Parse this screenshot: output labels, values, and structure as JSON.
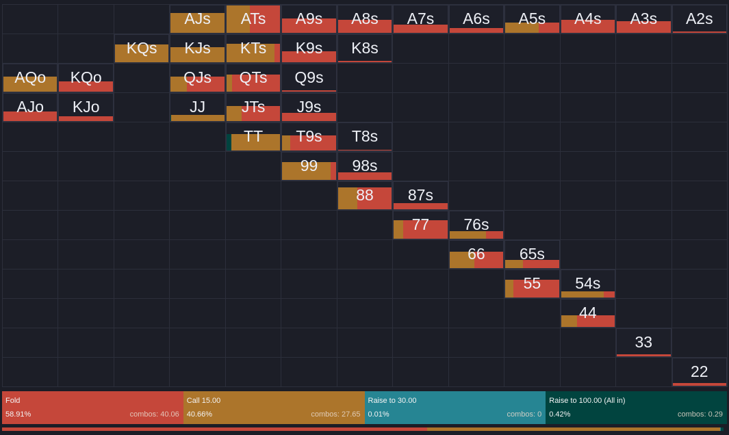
{
  "colors": {
    "fold": "#c5473a",
    "call": "#ac752b",
    "raise": "#268593",
    "allin": "#01443f"
  },
  "actions": [
    {
      "key": "fold",
      "name": "Fold",
      "pct": "58.91%",
      "combos": "combos: 40.06",
      "share": 58.91
    },
    {
      "key": "call",
      "name": "Call 15.00",
      "pct": "40.66%",
      "combos": "combos: 27.65",
      "share": 40.66
    },
    {
      "key": "raise",
      "name": "Raise to 30.00",
      "pct": "0.01%",
      "combos": "combos: 0",
      "share": 0.01
    },
    {
      "key": "allin",
      "name": "Raise to 100.00 (All in)",
      "pct": "0.42%",
      "combos": "combos: 0.29",
      "share": 0.42
    }
  ],
  "hands": [
    {
      "label": "AJs",
      "row": 0,
      "col": 3,
      "weight": 0.72,
      "call": 1,
      "fold": 0,
      "allin": 0
    },
    {
      "label": "ATs",
      "row": 0,
      "col": 4,
      "weight": 1.0,
      "call": 0.43,
      "fold": 0.57,
      "allin": 0
    },
    {
      "label": "A9s",
      "row": 0,
      "col": 5,
      "weight": 0.52,
      "call": 0,
      "fold": 1,
      "allin": 0
    },
    {
      "label": "A8s",
      "row": 0,
      "col": 6,
      "weight": 0.47,
      "call": 0,
      "fold": 1,
      "allin": 0
    },
    {
      "label": "A7s",
      "row": 0,
      "col": 7,
      "weight": 0.3,
      "call": 0,
      "fold": 1,
      "allin": 0
    },
    {
      "label": "A6s",
      "row": 0,
      "col": 8,
      "weight": 0.18,
      "call": 0,
      "fold": 1,
      "allin": 0
    },
    {
      "label": "A5s",
      "row": 0,
      "col": 9,
      "weight": 0.38,
      "call": 0.62,
      "fold": 0.38,
      "allin": 0
    },
    {
      "label": "A4s",
      "row": 0,
      "col": 10,
      "weight": 0.47,
      "call": 0,
      "fold": 1,
      "allin": 0
    },
    {
      "label": "A3s",
      "row": 0,
      "col": 11,
      "weight": 0.42,
      "call": 0,
      "fold": 1,
      "allin": 0
    },
    {
      "label": "A2s",
      "row": 0,
      "col": 12,
      "weight": 0.05,
      "call": 0,
      "fold": 1,
      "allin": 0
    },
    {
      "label": "KQs",
      "row": 1,
      "col": 2,
      "weight": 0.64,
      "call": 1,
      "fold": 0,
      "allin": 0
    },
    {
      "label": "KJs",
      "row": 1,
      "col": 3,
      "weight": 0.55,
      "call": 1,
      "fold": 0,
      "allin": 0
    },
    {
      "label": "KTs",
      "row": 1,
      "col": 4,
      "weight": 0.67,
      "call": 0.9,
      "fold": 0.1,
      "allin": 0
    },
    {
      "label": "K9s",
      "row": 1,
      "col": 5,
      "weight": 0.4,
      "call": 0,
      "fold": 1,
      "allin": 0
    },
    {
      "label": "K8s",
      "row": 1,
      "col": 6,
      "weight": 0.06,
      "call": 0,
      "fold": 1,
      "allin": 0
    },
    {
      "label": "AQo",
      "row": 2,
      "col": 0,
      "weight": 0.55,
      "call": 1,
      "fold": 0,
      "allin": 0
    },
    {
      "label": "KQo",
      "row": 2,
      "col": 1,
      "weight": 0.38,
      "call": 0,
      "fold": 1,
      "allin": 0
    },
    {
      "label": "QJs",
      "row": 2,
      "col": 3,
      "weight": 0.55,
      "call": 0.3,
      "fold": 0.7,
      "allin": 0
    },
    {
      "label": "QTs",
      "row": 2,
      "col": 4,
      "weight": 0.63,
      "call": 0.1,
      "fold": 0.9,
      "allin": 0
    },
    {
      "label": "Q9s",
      "row": 2,
      "col": 5,
      "weight": 0.04,
      "call": 0,
      "fold": 1,
      "allin": 0
    },
    {
      "label": "AJo",
      "row": 3,
      "col": 0,
      "weight": 0.35,
      "call": 0,
      "fold": 1,
      "allin": 0
    },
    {
      "label": "KJo",
      "row": 3,
      "col": 1,
      "weight": 0.18,
      "call": 0,
      "fold": 1,
      "allin": 0
    },
    {
      "label": "JJ",
      "row": 3,
      "col": 3,
      "weight": 0.22,
      "call": 0.99,
      "fold": 0,
      "allin": 0.01
    },
    {
      "label": "JTs",
      "row": 3,
      "col": 4,
      "weight": 0.55,
      "call": 0.28,
      "fold": 0.72,
      "allin": 0
    },
    {
      "label": "J9s",
      "row": 3,
      "col": 5,
      "weight": 0.3,
      "call": 0,
      "fold": 1,
      "allin": 0
    },
    {
      "label": "TT",
      "row": 4,
      "col": 4,
      "weight": 0.6,
      "call": 0.91,
      "fold": 0,
      "allin": 0.09
    },
    {
      "label": "T9s",
      "row": 4,
      "col": 5,
      "weight": 0.55,
      "call": 0.15,
      "fold": 0.85,
      "allin": 0
    },
    {
      "label": "T8s",
      "row": 4,
      "col": 6,
      "weight": 0.03,
      "call": 0,
      "fold": 1,
      "allin": 0
    },
    {
      "label": "99",
      "row": 5,
      "col": 5,
      "weight": 0.65,
      "call": 0.9,
      "fold": 0.1,
      "allin": 0
    },
    {
      "label": "98s",
      "row": 5,
      "col": 6,
      "weight": 0.28,
      "call": 0,
      "fold": 1,
      "allin": 0
    },
    {
      "label": "88",
      "row": 6,
      "col": 6,
      "weight": 0.8,
      "call": 0.36,
      "fold": 0.64,
      "allin": 0
    },
    {
      "label": "87s",
      "row": 6,
      "col": 7,
      "weight": 0.23,
      "call": 0,
      "fold": 1,
      "allin": 0
    },
    {
      "label": "77",
      "row": 7,
      "col": 7,
      "weight": 0.68,
      "call": 0.17,
      "fold": 0.83,
      "allin": 0
    },
    {
      "label": "76s",
      "row": 7,
      "col": 8,
      "weight": 0.28,
      "call": 0.68,
      "fold": 0.32,
      "allin": 0
    },
    {
      "label": "66",
      "row": 8,
      "col": 8,
      "weight": 0.6,
      "call": 0.46,
      "fold": 0.54,
      "allin": 0
    },
    {
      "label": "65s",
      "row": 8,
      "col": 9,
      "weight": 0.3,
      "call": 0.33,
      "fold": 0.67,
      "allin": 0
    },
    {
      "label": "55",
      "row": 9,
      "col": 9,
      "weight": 0.65,
      "call": 0.15,
      "fold": 0.85,
      "allin": 0
    },
    {
      "label": "54s",
      "row": 9,
      "col": 10,
      "weight": 0.23,
      "call": 0.8,
      "fold": 0.2,
      "allin": 0
    },
    {
      "label": "44",
      "row": 10,
      "col": 10,
      "weight": 0.42,
      "call": 0.3,
      "fold": 0.7,
      "allin": 0
    },
    {
      "label": "33",
      "row": 11,
      "col": 11,
      "weight": 0.08,
      "call": 0,
      "fold": 1,
      "allin": 0
    },
    {
      "label": "22",
      "row": 12,
      "col": 12,
      "weight": 0.1,
      "call": 0,
      "fold": 1,
      "allin": 0
    }
  ]
}
